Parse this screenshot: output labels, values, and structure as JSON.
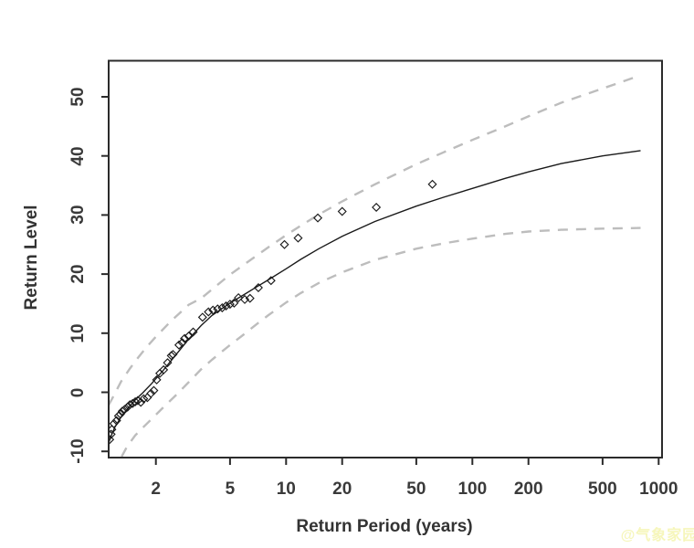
{
  "watermark": {
    "text": "@气象家园",
    "color": "#f6f6bb"
  },
  "chart_data": {
    "type": "line",
    "title": "",
    "xlabel": "Return Period (years)",
    "ylabel": "Return Level",
    "x_scale": "log10",
    "x_ticks": [
      2,
      5,
      10,
      20,
      50,
      100,
      200,
      500,
      1000
    ],
    "y_ticks": [
      -10,
      0,
      10,
      20,
      30,
      40,
      50
    ],
    "x_range": [
      1.12,
      1040
    ],
    "y_range": [
      -10.9,
      55.9
    ],
    "grid": "off",
    "legend": "none",
    "frame_color": "#2b2b2b",
    "background": "#ffffff",
    "series": [
      {
        "name": "fitted-return-level-curve",
        "style": "solid",
        "color": "#1a1a1a",
        "points": [
          [
            1.115,
            -8.6
          ],
          [
            1.15,
            -7.4
          ],
          [
            1.2,
            -6.0
          ],
          [
            1.3,
            -4.2
          ],
          [
            1.4,
            -2.9
          ],
          [
            1.55,
            -1.3
          ],
          [
            1.7,
            -0.1
          ],
          [
            1.9,
            1.5
          ],
          [
            2.2,
            3.8
          ],
          [
            2.6,
            6.6
          ],
          [
            3.0,
            9.0
          ],
          [
            3.5,
            11.3
          ],
          [
            4.0,
            13.0
          ],
          [
            5.0,
            15.1
          ],
          [
            6.0,
            16.6
          ],
          [
            7.0,
            17.9
          ],
          [
            8.0,
            19.0
          ],
          [
            10,
            20.9
          ],
          [
            12,
            22.5
          ],
          [
            15,
            24.3
          ],
          [
            20,
            26.4
          ],
          [
            30,
            28.9
          ],
          [
            50,
            31.5
          ],
          [
            70,
            33.0
          ],
          [
            100,
            34.5
          ],
          [
            150,
            36.2
          ],
          [
            200,
            37.3
          ],
          [
            300,
            38.7
          ],
          [
            500,
            40.0
          ],
          [
            800,
            40.9
          ]
        ]
      },
      {
        "name": "upper-confidence-band",
        "style": "dashed",
        "color": "#bdbdbd",
        "points": [
          [
            1.115,
            -2.2
          ],
          [
            1.2,
            -0.3
          ],
          [
            1.3,
            1.8
          ],
          [
            1.45,
            4.0
          ],
          [
            1.6,
            5.8
          ],
          [
            1.8,
            7.8
          ],
          [
            2.0,
            9.4
          ],
          [
            2.4,
            12.0
          ],
          [
            3.0,
            14.8
          ],
          [
            3.5,
            15.9
          ],
          [
            4.0,
            17.4
          ],
          [
            5.0,
            19.9
          ],
          [
            6.0,
            21.7
          ],
          [
            7.0,
            23.2
          ],
          [
            8.0,
            24.5
          ],
          [
            10,
            26.6
          ],
          [
            12,
            28.2
          ],
          [
            15,
            30.1
          ],
          [
            20,
            32.3
          ],
          [
            30,
            35.2
          ],
          [
            50,
            38.6
          ],
          [
            70,
            40.6
          ],
          [
            100,
            42.7
          ],
          [
            150,
            45.0
          ],
          [
            200,
            46.7
          ],
          [
            300,
            49.0
          ],
          [
            500,
            51.4
          ],
          [
            730,
            53.2
          ]
        ]
      },
      {
        "name": "lower-confidence-band",
        "style": "dashed",
        "color": "#bdbdbd",
        "points": [
          [
            1.31,
            -10.9
          ],
          [
            1.4,
            -9.2
          ],
          [
            1.55,
            -7.3
          ],
          [
            1.7,
            -6.0
          ],
          [
            1.9,
            -4.5
          ],
          [
            2.2,
            -2.5
          ],
          [
            2.6,
            -0.3
          ],
          [
            3.0,
            1.7
          ],
          [
            3.5,
            3.9
          ],
          [
            4.0,
            5.5
          ],
          [
            5.0,
            8.0
          ],
          [
            6.0,
            9.9
          ],
          [
            7.0,
            11.6
          ],
          [
            8.0,
            13.0
          ],
          [
            10,
            15.2
          ],
          [
            12,
            16.8
          ],
          [
            15,
            18.5
          ],
          [
            20,
            20.3
          ],
          [
            30,
            22.4
          ],
          [
            50,
            24.3
          ],
          [
            70,
            25.2
          ],
          [
            100,
            26.0
          ],
          [
            150,
            26.8
          ],
          [
            200,
            27.2
          ],
          [
            300,
            27.5
          ],
          [
            500,
            27.7
          ],
          [
            800,
            27.8
          ]
        ]
      }
    ],
    "scatter": {
      "name": "empirical-return-levels",
      "marker": "open-diamond",
      "color": "#1a1a1a",
      "points": [
        [
          1.13,
          -8.0
        ],
        [
          1.15,
          -7.1
        ],
        [
          1.16,
          -6.3
        ],
        [
          1.19,
          -5.3
        ],
        [
          1.23,
          -4.8
        ],
        [
          1.26,
          -4.0
        ],
        [
          1.29,
          -3.7
        ],
        [
          1.32,
          -3.2
        ],
        [
          1.36,
          -2.9
        ],
        [
          1.41,
          -2.5
        ],
        [
          1.45,
          -2.1
        ],
        [
          1.5,
          -1.9
        ],
        [
          1.55,
          -1.6
        ],
        [
          1.6,
          -1.4
        ],
        [
          1.66,
          -1.7
        ],
        [
          1.72,
          -1.1
        ],
        [
          1.8,
          -0.9
        ],
        [
          1.88,
          -0.2
        ],
        [
          1.95,
          0.3
        ],
        [
          2.02,
          2.1
        ],
        [
          2.1,
          3.2
        ],
        [
          2.2,
          3.8
        ],
        [
          2.31,
          5.0
        ],
        [
          2.42,
          6.2
        ],
        [
          2.47,
          6.4
        ],
        [
          2.66,
          8.0
        ],
        [
          2.77,
          8.4
        ],
        [
          2.85,
          9.1
        ],
        [
          3.0,
          9.5
        ],
        [
          3.17,
          10.2
        ],
        [
          3.56,
          12.7
        ],
        [
          3.83,
          13.6
        ],
        [
          4.05,
          13.9
        ],
        [
          4.29,
          14.1
        ],
        [
          4.54,
          14.3
        ],
        [
          4.76,
          14.6
        ],
        [
          5.0,
          14.9
        ],
        [
          5.26,
          15.1
        ],
        [
          5.55,
          16.0
        ],
        [
          6.0,
          15.7
        ],
        [
          6.4,
          15.9
        ],
        [
          7.1,
          17.7
        ],
        [
          8.3,
          18.9
        ],
        [
          9.8,
          25.0
        ],
        [
          11.6,
          26.1
        ],
        [
          14.8,
          29.5
        ],
        [
          20.0,
          30.6
        ],
        [
          30.5,
          31.3
        ],
        [
          61.0,
          35.2
        ]
      ]
    }
  }
}
